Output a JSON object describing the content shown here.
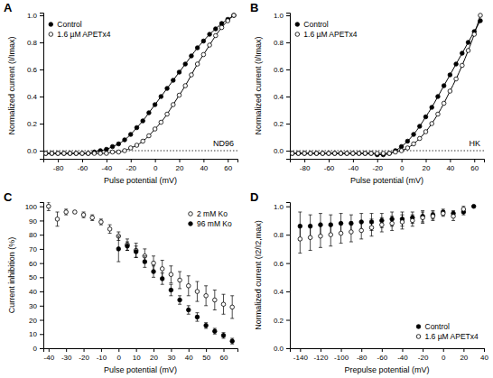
{
  "chart_data": [
    {
      "type": "line",
      "title": "A",
      "x_label": "Pulse potential (mV)",
      "y_label": "Normalized current (I/Imax)",
      "annotations": [
        "ND96"
      ],
      "legend": "top-left",
      "xlim": [
        -92,
        68
      ],
      "xticks": [
        -80,
        -60,
        -40,
        -20,
        0,
        20,
        40,
        60
      ],
      "ylim": [
        -0.06,
        1.02
      ],
      "yticks": [
        {
          "value": 0,
          "label": "0.0"
        },
        {
          "value": 0.2,
          "label": "0.2"
        },
        {
          "value": 0.4,
          "label": "0.4"
        },
        {
          "value": 0.6,
          "label": "0.6"
        },
        {
          "value": 0.8,
          "label": "0.8"
        },
        {
          "value": 1,
          "label": "1.0"
        }
      ],
      "x": [
        -90,
        -85,
        -80,
        -75,
        -70,
        -65,
        -60,
        -55,
        -50,
        -45,
        -40,
        -35,
        -30,
        -25,
        -20,
        -15,
        -10,
        -5,
        0,
        5,
        10,
        15,
        20,
        25,
        30,
        35,
        40,
        45,
        50,
        55,
        60,
        65
      ],
      "series": [
        {
          "name": "Control",
          "color": "#000000",
          "marker": "circle-filled",
          "line_style": "solid",
          "values": [
            -0.02,
            -0.02,
            -0.02,
            -0.02,
            -0.02,
            -0.02,
            -0.02,
            -0.02,
            -0.01,
            0.0,
            0.01,
            0.03,
            0.05,
            0.08,
            0.12,
            0.17,
            0.22,
            0.28,
            0.34,
            0.4,
            0.46,
            0.52,
            0.58,
            0.64,
            0.7,
            0.76,
            0.81,
            0.86,
            0.9,
            0.94,
            0.97,
            1.0
          ]
        },
        {
          "name": "1.6 µM APETx4",
          "color": "#000000",
          "marker": "circle-open",
          "line_style": "solid",
          "values": [
            -0.02,
            -0.02,
            -0.02,
            -0.02,
            -0.02,
            -0.02,
            -0.02,
            -0.02,
            -0.02,
            -0.02,
            -0.02,
            -0.01,
            -0.01,
            0.0,
            0.02,
            0.04,
            0.07,
            0.11,
            0.16,
            0.21,
            0.27,
            0.34,
            0.41,
            0.48,
            0.56,
            0.64,
            0.71,
            0.78,
            0.85,
            0.91,
            0.96,
            1.0
          ]
        }
      ]
    },
    {
      "type": "line",
      "title": "B",
      "x_label": "Pulse potential (mV)",
      "y_label": "Normalized current (I/Imax)",
      "annotations": [
        "HK"
      ],
      "legend": "top-left",
      "xlim": [
        -92,
        68
      ],
      "xticks": [
        -80,
        -60,
        -40,
        -20,
        0,
        20,
        40,
        60
      ],
      "ylim": [
        -0.06,
        1.02
      ],
      "yticks": [
        {
          "value": 0,
          "label": "0.0"
        },
        {
          "value": 0.2,
          "label": "0.2"
        },
        {
          "value": 0.4,
          "label": "0.4"
        },
        {
          "value": 0.6,
          "label": "0.6"
        },
        {
          "value": 0.8,
          "label": "0.8"
        },
        {
          "value": 1,
          "label": "1.0"
        }
      ],
      "x": [
        -90,
        -85,
        -80,
        -75,
        -70,
        -65,
        -60,
        -55,
        -50,
        -45,
        -40,
        -35,
        -30,
        -25,
        -20,
        -15,
        -10,
        -5,
        0,
        5,
        10,
        15,
        20,
        25,
        30,
        35,
        40,
        45,
        50,
        55,
        60,
        65
      ],
      "series": [
        {
          "name": "Control",
          "color": "#000000",
          "marker": "circle-filled",
          "line_style": "solid",
          "values": [
            -0.02,
            -0.02,
            -0.02,
            -0.02,
            -0.02,
            -0.02,
            -0.02,
            -0.02,
            -0.02,
            -0.02,
            -0.02,
            -0.02,
            -0.02,
            -0.02,
            -0.03,
            -0.03,
            -0.02,
            0.0,
            0.03,
            0.07,
            0.12,
            0.18,
            0.25,
            0.32,
            0.4,
            0.48,
            0.56,
            0.64,
            0.72,
            0.8,
            0.88,
            0.96
          ]
        },
        {
          "name": "1.6 µM APETx4",
          "color": "#000000",
          "marker": "circle-open",
          "line_style": "solid",
          "values": [
            -0.02,
            -0.02,
            -0.02,
            -0.02,
            -0.02,
            -0.02,
            -0.02,
            -0.02,
            -0.02,
            -0.02,
            -0.02,
            -0.02,
            -0.02,
            -0.02,
            -0.02,
            -0.02,
            -0.02,
            -0.01,
            0.0,
            0.02,
            0.05,
            0.09,
            0.14,
            0.2,
            0.27,
            0.35,
            0.44,
            0.53,
            0.63,
            0.74,
            0.86,
            1.0
          ]
        }
      ]
    },
    {
      "type": "scatter",
      "title": "C",
      "x_label": "Pulse potential (mV)",
      "y_label": "Current inhibition (%)",
      "legend": "top-right",
      "xlim": [
        -43,
        68
      ],
      "xticks": [
        -40,
        -30,
        -20,
        -10,
        0,
        10,
        20,
        30,
        40,
        50,
        60
      ],
      "ylim": [
        0,
        103
      ],
      "yticks": [
        0,
        10,
        20,
        30,
        40,
        50,
        60,
        70,
        80,
        90,
        100
      ],
      "x": [
        -40,
        -35,
        -30,
        -25,
        -20,
        -15,
        -10,
        -5,
        0,
        5,
        10,
        15,
        20,
        25,
        30,
        35,
        40,
        45,
        50,
        55,
        60,
        65
      ],
      "series": [
        {
          "name": "2 mM Ko",
          "color": "#000000",
          "marker": "circle-open",
          "values": [
            100,
            91,
            96,
            96,
            94,
            92,
            89,
            84,
            79,
            73,
            69,
            65,
            60,
            56,
            52,
            48,
            44,
            40,
            37,
            34,
            31,
            29
          ],
          "errors": [
            3,
            5,
            2,
            1,
            2,
            2,
            2,
            3,
            3,
            4,
            5,
            5,
            5,
            6,
            6,
            6,
            7,
            7,
            7,
            7,
            7,
            8
          ]
        },
        {
          "name": "96 mM Ko",
          "color": "#000000",
          "marker": "circle-filled",
          "values": [
            null,
            null,
            null,
            null,
            null,
            null,
            null,
            null,
            70,
            72,
            68,
            61,
            54,
            49,
            41,
            34,
            27,
            22,
            16,
            12,
            9,
            5
          ],
          "errors": [
            null,
            null,
            null,
            null,
            null,
            null,
            null,
            null,
            9,
            3,
            4,
            4,
            4,
            4,
            4,
            3,
            3,
            3,
            2,
            2,
            2,
            2
          ]
        }
      ]
    },
    {
      "type": "scatter",
      "title": "D",
      "x_label": "Prepulse potential (mV)",
      "y_label": "Normalized current (I2/I2,max)",
      "legend": "bottom-right",
      "xlim": [
        -150,
        40
      ],
      "xticks": [
        -140,
        -120,
        -100,
        -80,
        -60,
        -40,
        -20,
        0,
        20,
        40
      ],
      "ylim": [
        0,
        1.03
      ],
      "yticks": [
        {
          "value": 0,
          "label": "0.0"
        },
        {
          "value": 0.2,
          "label": "0.2"
        },
        {
          "value": 0.4,
          "label": "0.4"
        },
        {
          "value": 0.6,
          "label": "0.6"
        },
        {
          "value": 0.8,
          "label": "0.8"
        },
        {
          "value": 1,
          "label": "1.0"
        }
      ],
      "x": [
        -140,
        -130,
        -120,
        -110,
        -100,
        -90,
        -80,
        -70,
        -60,
        -50,
        -40,
        -30,
        -20,
        -10,
        0,
        10,
        20,
        30
      ],
      "series": [
        {
          "name": "Control",
          "color": "#000000",
          "marker": "circle-filled",
          "values": [
            0.86,
            0.86,
            0.87,
            0.87,
            0.88,
            0.88,
            0.89,
            0.89,
            0.9,
            0.91,
            0.91,
            0.92,
            0.93,
            0.94,
            0.96,
            0.95,
            0.96,
            1.0
          ],
          "errors": [
            0.1,
            0.08,
            0.08,
            0.07,
            0.07,
            0.06,
            0.06,
            0.06,
            0.05,
            0.05,
            0.05,
            0.04,
            0.04,
            0.03,
            0.02,
            0.02,
            0.02,
            0.0
          ]
        },
        {
          "name": "1.6 µM APETx4",
          "color": "#000000",
          "marker": "circle-open",
          "values": [
            0.77,
            0.78,
            0.79,
            0.8,
            0.81,
            0.82,
            0.83,
            0.85,
            0.87,
            0.88,
            0.89,
            0.9,
            0.92,
            0.93,
            0.95,
            0.93,
            0.98,
            null
          ],
          "errors": [
            0.1,
            0.09,
            0.08,
            0.08,
            0.07,
            0.07,
            0.06,
            0.06,
            0.05,
            0.05,
            0.05,
            0.04,
            0.04,
            0.03,
            0.02,
            0.03,
            0.02,
            null
          ]
        }
      ]
    }
  ]
}
